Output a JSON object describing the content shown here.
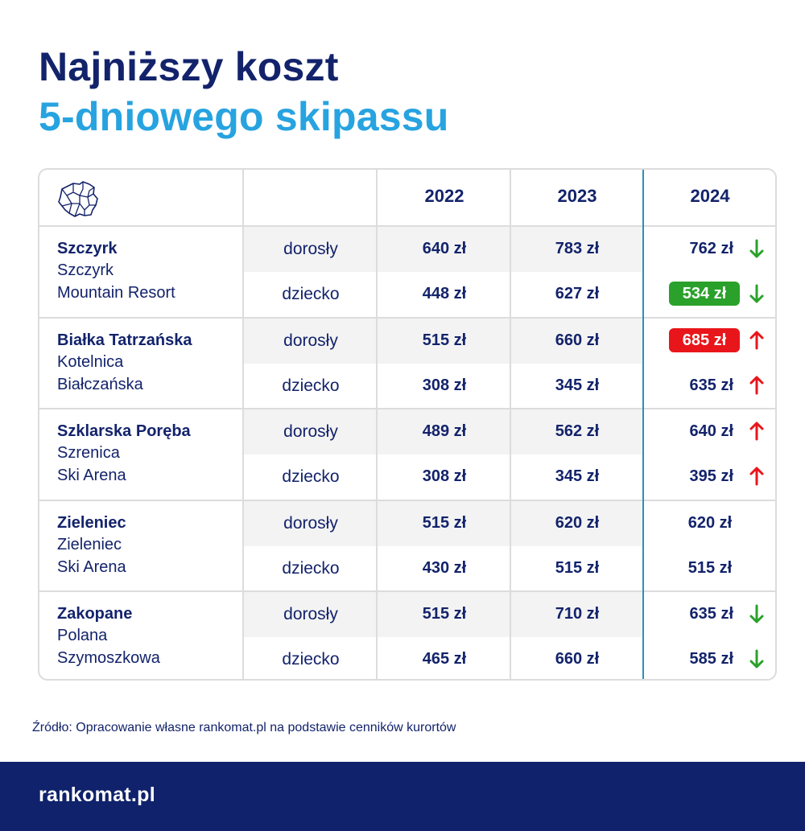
{
  "title": {
    "line1": "Najniższy koszt",
    "line2": "5-dniowego skipassu"
  },
  "colors": {
    "navy": "#13236b",
    "light_blue": "#27a3e0",
    "green": "#2aa12a",
    "red": "#e8161a",
    "highlight_border": "#2e8fb5"
  },
  "table": {
    "corner_icon": "poland-map-icon",
    "years": [
      "2022",
      "2023",
      "2024"
    ],
    "resorts": [
      {
        "name": "Szczyrk",
        "sub1": "Szczyrk",
        "sub2": "Mountain Resort",
        "rows": [
          {
            "category": "dorosły",
            "p2022": "640 zł",
            "p2023": "783 zł",
            "p2024": "762 zł",
            "trend": "down",
            "badge": "none"
          },
          {
            "category": "dziecko",
            "p2022": "448 zł",
            "p2023": "627 zł",
            "p2024": "534 zł",
            "trend": "down",
            "badge": "green"
          }
        ]
      },
      {
        "name": "Białka Tatrzańska",
        "sub1": "Kotelnica",
        "sub2": "Białczańska",
        "rows": [
          {
            "category": "dorosły",
            "p2022": "515 zł",
            "p2023": "660 zł",
            "p2024": "685 zł",
            "trend": "up",
            "badge": "red"
          },
          {
            "category": "dziecko",
            "p2022": "308 zł",
            "p2023": "345 zł",
            "p2024": "635 zł",
            "trend": "up",
            "badge": "none"
          }
        ]
      },
      {
        "name": "Szklarska Poręba",
        "sub1": "Szrenica",
        "sub2": "Ski Arena",
        "rows": [
          {
            "category": "dorosły",
            "p2022": "489 zł",
            "p2023": "562 zł",
            "p2024": "640 zł",
            "trend": "up",
            "badge": "none"
          },
          {
            "category": "dziecko",
            "p2022": "308 zł",
            "p2023": "345 zł",
            "p2024": "395 zł",
            "trend": "up",
            "badge": "none"
          }
        ]
      },
      {
        "name": "Zieleniec",
        "sub1": "Zieleniec",
        "sub2": "Ski Arena",
        "rows": [
          {
            "category": "dorosły",
            "p2022": "515 zł",
            "p2023": "620 zł",
            "p2024": "620 zł",
            "trend": "none",
            "badge": "none"
          },
          {
            "category": "dziecko",
            "p2022": "430 zł",
            "p2023": "515 zł",
            "p2024": "515 zł",
            "trend": "none",
            "badge": "none"
          }
        ]
      },
      {
        "name": "Zakopane",
        "sub1": "Polana",
        "sub2": "Szymoszkowa",
        "rows": [
          {
            "category": "dorosły",
            "p2022": "515 zł",
            "p2023": "710 zł",
            "p2024": "635 zł",
            "trend": "down",
            "badge": "none"
          },
          {
            "category": "dziecko",
            "p2022": "465 zł",
            "p2023": "660 zł",
            "p2024": "585 zł",
            "trend": "down",
            "badge": "none"
          }
        ]
      }
    ]
  },
  "source": "Źródło: Opracowanie własne rankomat.pl na podstawie cenników kurortów",
  "footer": {
    "logo": "rankomat.pl"
  }
}
